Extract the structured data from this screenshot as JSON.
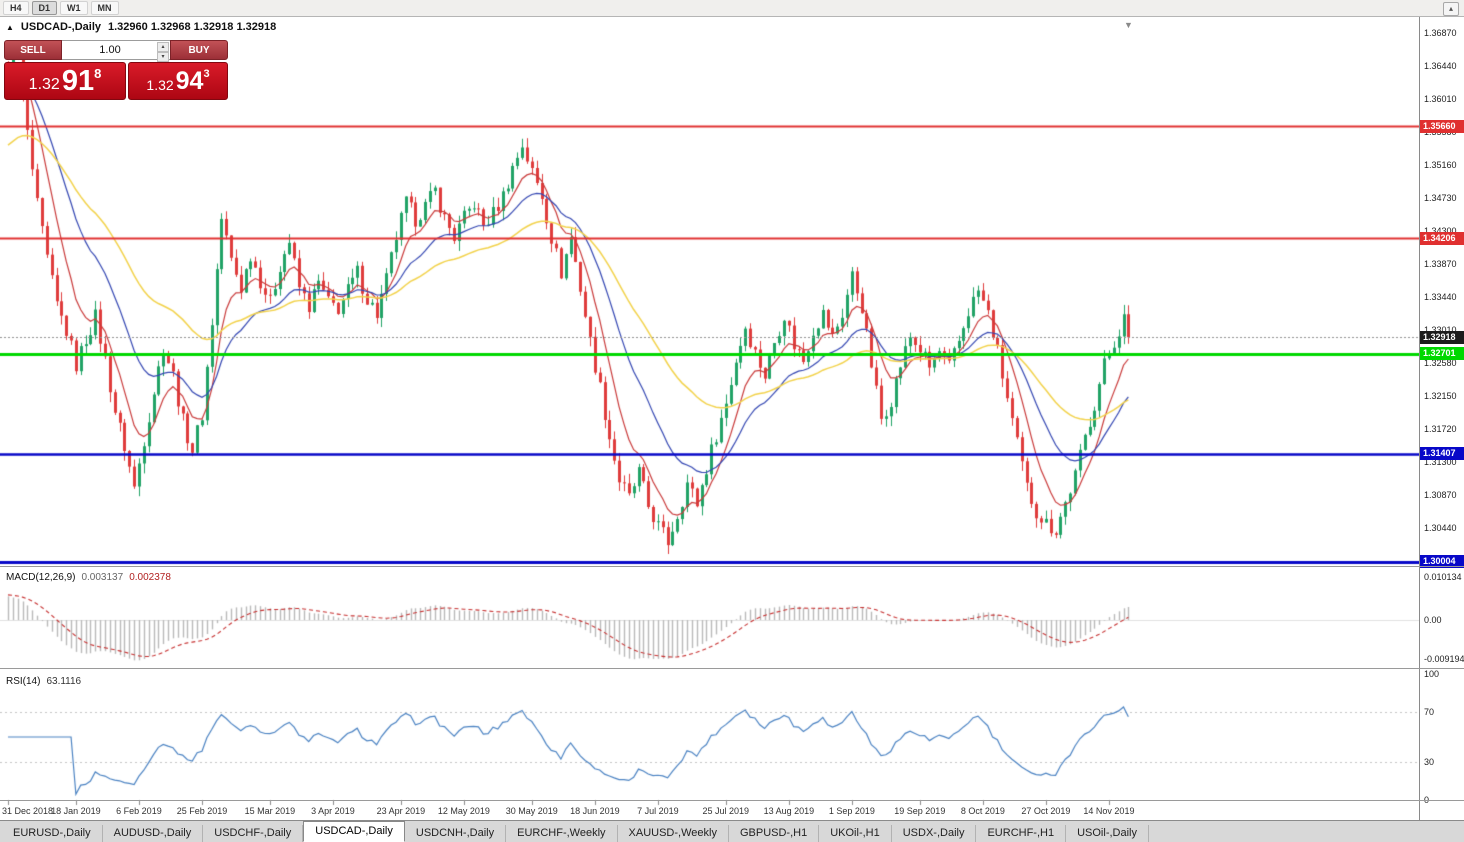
{
  "icons": {
    "toolbar_collapse": "▴",
    "one_click_toggle": "▲",
    "shift_marker": "▼",
    "spin_up": "▴",
    "spin_down": "▾"
  },
  "toolbar": {
    "timeframes": [
      {
        "label": "H4",
        "active": false
      },
      {
        "label": "D1",
        "active": true
      },
      {
        "label": "W1",
        "active": false
      },
      {
        "label": "MN",
        "active": false
      }
    ]
  },
  "chart": {
    "title_symbol": "USDCAD-,Daily",
    "ohlc": "1.32960 1.32968 1.32918 1.32918",
    "one_click": {
      "sell_label": "SELL",
      "buy_label": "BUY",
      "volume": "1.00",
      "sell_big": "1.32",
      "sell_main": "91",
      "sell_sup": "8",
      "buy_big": "1.32",
      "buy_main": "94",
      "buy_sup": "3"
    }
  },
  "price_axis": {
    "top_value": 1.3687,
    "labels": [
      "1.36870",
      "1.36440",
      "1.36010",
      "1.35580",
      "1.35160",
      "1.34730",
      "1.34300",
      "1.33870",
      "1.33440",
      "1.33010",
      "1.32580",
      "1.32150",
      "1.31720",
      "1.31300",
      "1.30870",
      "1.30440",
      "1.30010"
    ]
  },
  "levels": [
    {
      "value": 1.3566,
      "label": "1.35660",
      "color": "#e03030",
      "width": 2
    },
    {
      "value": 1.34206,
      "label": "1.34206",
      "color": "#e03030",
      "width": 2
    },
    {
      "value": 1.32701,
      "label": "1.32701",
      "color": "#00d800",
      "width": 3
    },
    {
      "value": 1.31407,
      "label": "1.31407",
      "color": "#0808c8",
      "width": 2.5
    },
    {
      "value": 1.30004,
      "label": "1.30004",
      "color": "#0808c8",
      "width": 3
    }
  ],
  "current_price": {
    "value": 1.32918,
    "label": "1.32918",
    "badge_color": "#1c1c1c",
    "line_color": "#909090"
  },
  "chart_data": {
    "type": "candlestick",
    "symbol": "USDCAD",
    "period": "Daily",
    "count": 232,
    "last_close": 1.32918,
    "up_color": "#21a366",
    "down_color": "#df3c3c",
    "visible_range": {
      "price_min": 1.2996,
      "price_max": 1.3697
    },
    "anchors": [
      [
        0,
        1.363
      ],
      [
        1,
        1.3662
      ],
      [
        2,
        1.365
      ],
      [
        4,
        1.3555
      ],
      [
        6,
        1.3462
      ],
      [
        8,
        1.3392
      ],
      [
        10,
        1.3333
      ],
      [
        12,
        1.33
      ],
      [
        14,
        1.3256
      ],
      [
        16,
        1.329
      ],
      [
        18,
        1.3318
      ],
      [
        20,
        1.3262
      ],
      [
        22,
        1.3196
      ],
      [
        24,
        1.315
      ],
      [
        26,
        1.3096
      ],
      [
        28,
        1.316
      ],
      [
        30,
        1.3222
      ],
      [
        32,
        1.328
      ],
      [
        34,
        1.3242
      ],
      [
        36,
        1.3182
      ],
      [
        38,
        1.3146
      ],
      [
        40,
        1.3192
      ],
      [
        42,
        1.3312
      ],
      [
        44,
        1.3446
      ],
      [
        46,
        1.3392
      ],
      [
        48,
        1.3356
      ],
      [
        50,
        1.34
      ],
      [
        52,
        1.3366
      ],
      [
        54,
        1.3336
      ],
      [
        56,
        1.3386
      ],
      [
        58,
        1.3416
      ],
      [
        60,
        1.3356
      ],
      [
        62,
        1.3332
      ],
      [
        64,
        1.3362
      ],
      [
        66,
        1.3336
      ],
      [
        68,
        1.333
      ],
      [
        70,
        1.3352
      ],
      [
        72,
        1.3376
      ],
      [
        74,
        1.3342
      ],
      [
        76,
        1.3322
      ],
      [
        78,
        1.3366
      ],
      [
        80,
        1.3422
      ],
      [
        82,
        1.3466
      ],
      [
        84,
        1.3446
      ],
      [
        86,
        1.3462
      ],
      [
        88,
        1.3482
      ],
      [
        90,
        1.3446
      ],
      [
        92,
        1.3422
      ],
      [
        94,
        1.3446
      ],
      [
        96,
        1.3466
      ],
      [
        98,
        1.3436
      ],
      [
        100,
        1.3452
      ],
      [
        102,
        1.3476
      ],
      [
        104,
        1.3512
      ],
      [
        106,
        1.3542
      ],
      [
        108,
        1.3506
      ],
      [
        110,
        1.3476
      ],
      [
        112,
        1.3422
      ],
      [
        114,
        1.3376
      ],
      [
        116,
        1.3422
      ],
      [
        118,
        1.3356
      ],
      [
        120,
        1.3286
      ],
      [
        122,
        1.3226
      ],
      [
        124,
        1.3162
      ],
      [
        126,
        1.3106
      ],
      [
        128,
        1.3082
      ],
      [
        130,
        1.3116
      ],
      [
        132,
        1.3072
      ],
      [
        134,
        1.3046
      ],
      [
        136,
        1.3026
      ],
      [
        138,
        1.3062
      ],
      [
        140,
        1.3102
      ],
      [
        142,
        1.3076
      ],
      [
        144,
        1.3122
      ],
      [
        146,
        1.3166
      ],
      [
        148,
        1.3206
      ],
      [
        150,
        1.3262
      ],
      [
        152,
        1.3306
      ],
      [
        154,
        1.3272
      ],
      [
        156,
        1.3242
      ],
      [
        158,
        1.3286
      ],
      [
        160,
        1.3322
      ],
      [
        162,
        1.3282
      ],
      [
        164,
        1.3262
      ],
      [
        166,
        1.3302
      ],
      [
        168,
        1.3322
      ],
      [
        170,
        1.3292
      ],
      [
        172,
        1.3322
      ],
      [
        174,
        1.3372
      ],
      [
        176,
        1.3332
      ],
      [
        178,
        1.3256
      ],
      [
        180,
        1.3186
      ],
      [
        182,
        1.3212
      ],
      [
        184,
        1.3256
      ],
      [
        186,
        1.3292
      ],
      [
        188,
        1.3276
      ],
      [
        190,
        1.3252
      ],
      [
        192,
        1.3272
      ],
      [
        194,
        1.3252
      ],
      [
        196,
        1.3286
      ],
      [
        198,
        1.3326
      ],
      [
        200,
        1.3352
      ],
      [
        202,
        1.3322
      ],
      [
        204,
        1.3272
      ],
      [
        206,
        1.3212
      ],
      [
        208,
        1.3152
      ],
      [
        210,
        1.3096
      ],
      [
        212,
        1.3066
      ],
      [
        214,
        1.305
      ],
      [
        216,
        1.3042
      ],
      [
        218,
        1.3076
      ],
      [
        220,
        1.3112
      ],
      [
        222,
        1.3162
      ],
      [
        224,
        1.3206
      ],
      [
        226,
        1.3256
      ],
      [
        228,
        1.3286
      ],
      [
        230,
        1.3316
      ],
      [
        231,
        1.3292
      ]
    ],
    "date_labels": [
      [
        "31 Dec 2018",
        0
      ],
      [
        "18 Jan 2019",
        14
      ],
      [
        "6 Feb 2019",
        27
      ],
      [
        "25 Feb 2019",
        40
      ],
      [
        "15 Mar 2019",
        54
      ],
      [
        "3 Apr 2019",
        67
      ],
      [
        "23 Apr 2019",
        81
      ],
      [
        "12 May 2019",
        94
      ],
      [
        "30 May 2019",
        108
      ],
      [
        "18 Jun 2019",
        121
      ],
      [
        "7 Jul 2019",
        134
      ],
      [
        "25 Jul 2019",
        148
      ],
      [
        "13 Aug 2019",
        161
      ],
      [
        "1 Sep 2019",
        174
      ],
      [
        "19 Sep 2019",
        188
      ],
      [
        "8 Oct 2019",
        201
      ],
      [
        "27 Oct 2019",
        214
      ],
      [
        "14 Nov 2019",
        227
      ]
    ],
    "moving_averages": [
      {
        "period": 8,
        "color": "#c93a3a"
      },
      {
        "period": 20,
        "color": "#3346b2"
      },
      {
        "period": 45,
        "color": "#f2d24b"
      }
    ]
  },
  "macd": {
    "title": "MACD(12,26,9)",
    "value_main": "0.003137",
    "value_signal": "0.002378",
    "hist_color": "#b9b9b9",
    "signal_color": "#c62f2f",
    "axis": [
      {
        "label": "0.010134",
        "value": 0.010134
      },
      {
        "label": "0.00",
        "value": 0
      },
      {
        "label": "-0.0091940",
        "value": -0.009194
      }
    ]
  },
  "rsi": {
    "title": "RSI(14)",
    "value": "63.1116",
    "line_color": "#4a82c2",
    "levels": [
      70,
      30
    ],
    "axis": [
      {
        "label": "100",
        "value": 100
      },
      {
        "label": "70",
        "value": 70
      },
      {
        "label": "30",
        "value": 30
      },
      {
        "label": "0",
        "value": 0
      }
    ]
  },
  "tabs": [
    {
      "label": "EURUSD-,Daily",
      "active": false
    },
    {
      "label": "AUDUSD-,Daily",
      "active": false
    },
    {
      "label": "USDCHF-,Daily",
      "active": false
    },
    {
      "label": "USDCAD-,Daily",
      "active": true
    },
    {
      "label": "USDCNH-,Daily",
      "active": false
    },
    {
      "label": "EURCHF-,Weekly",
      "active": false
    },
    {
      "label": "XAUUSD-,Weekly",
      "active": false
    },
    {
      "label": "GBPUSD-,H1",
      "active": false
    },
    {
      "label": "UKOil-,H1",
      "active": false
    },
    {
      "label": "USDX-,Daily",
      "active": false
    },
    {
      "label": "EURCHF-,H1",
      "active": false
    },
    {
      "label": "USOil-,Daily",
      "active": false
    }
  ]
}
